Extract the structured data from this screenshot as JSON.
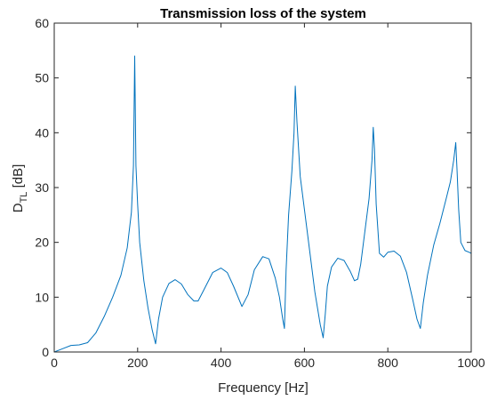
{
  "chart_data": {
    "type": "line",
    "title": "Transmission loss of the system",
    "xlabel": "Frequency [Hz]",
    "ylabel_main": "D",
    "ylabel_sub": "TL",
    "ylabel_unit": " [dB]",
    "xlim": [
      0,
      1000
    ],
    "ylim": [
      0,
      60
    ],
    "xticks": [
      0,
      200,
      400,
      600,
      800,
      1000
    ],
    "yticks": [
      0,
      10,
      20,
      30,
      40,
      50,
      60
    ],
    "grid": false,
    "line_color": "#0072BD",
    "series": [
      {
        "x": [
          0,
          20,
          40,
          60,
          80,
          100,
          120,
          140,
          160,
          175,
          185,
          190,
          193,
          196,
          200,
          205,
          215,
          225,
          235,
          243,
          250,
          260,
          275,
          290,
          305,
          320,
          335,
          345,
          360,
          380,
          400,
          415,
          430,
          450,
          465,
          480,
          500,
          515,
          530,
          540,
          548,
          552,
          556,
          562,
          570,
          575,
          578,
          582,
          590,
          600,
          610,
          625,
          638,
          645,
          650,
          655,
          665,
          680,
          695,
          710,
          720,
          728,
          735,
          745,
          755,
          762,
          765,
          768,
          772,
          780,
          790,
          800,
          815,
          830,
          845,
          860,
          870,
          878,
          885,
          895,
          910,
          925,
          940,
          950,
          958,
          963,
          966,
          970,
          975,
          985,
          995,
          1000
        ],
        "y": [
          0,
          0.6,
          1.2,
          1.3,
          1.7,
          3.5,
          6.5,
          10,
          14,
          19,
          25.5,
          34,
          54,
          34,
          27,
          20,
          13,
          8,
          4,
          1.5,
          6,
          10,
          12.5,
          13.2,
          12.4,
          10.5,
          9.3,
          9.3,
          11.5,
          14.5,
          15.3,
          14.5,
          12,
          8.3,
          10.5,
          15,
          17.4,
          17,
          13.5,
          10,
          6,
          4.3,
          15,
          25,
          33,
          40,
          48.5,
          42,
          32,
          26,
          20,
          11,
          5,
          2.6,
          7,
          12,
          15.5,
          17.1,
          16.7,
          14.7,
          13,
          13.3,
          16,
          22,
          28,
          35,
          41,
          37,
          27,
          18,
          17.3,
          18.2,
          18.4,
          17.5,
          14.5,
          9.5,
          6,
          4.3,
          9,
          14,
          19.5,
          23.5,
          28,
          31,
          35,
          38.2,
          33,
          26,
          20,
          18.5,
          18.2,
          18
        ]
      }
    ]
  }
}
